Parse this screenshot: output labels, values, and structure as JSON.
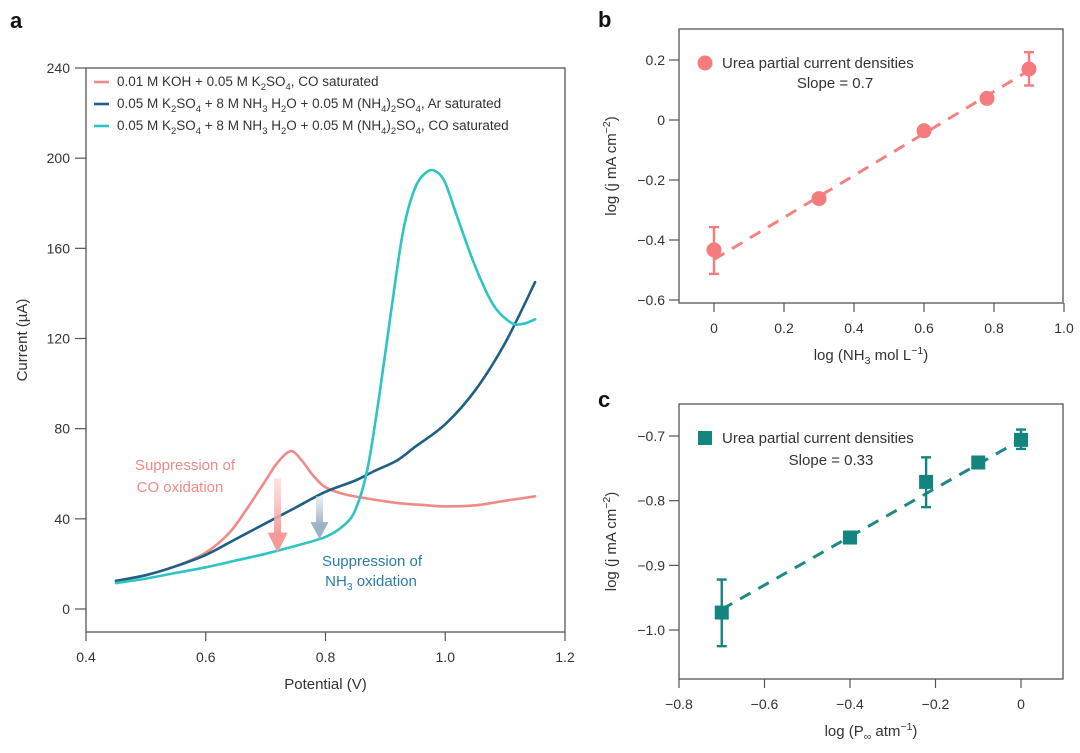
{
  "chart_data": [
    {
      "panel": "a",
      "type": "line",
      "title": "",
      "xlabel": "Potential (V)",
      "ylabel": "Current (µA)",
      "xlim": [
        0.4,
        1.2
      ],
      "ylim": [
        -15,
        240
      ],
      "xticks": [
        0.4,
        0.6,
        0.8,
        1.0,
        1.2
      ],
      "xtick_labels": [
        "0.4",
        "0.6",
        "0.8",
        "1.0",
        "1.2"
      ],
      "yticks": [
        0,
        40,
        80,
        120,
        160,
        200,
        240
      ],
      "ytick_labels": [
        "0",
        "40",
        "80",
        "120",
        "160",
        "200",
        "240"
      ],
      "grid": false,
      "legend_position": "top-left",
      "series": [
        {
          "name": "0.01 M KOH + 0.05 M K₂SO₄, CO saturated",
          "color": "#f08a88",
          "x": [
            0.45,
            0.5,
            0.55,
            0.6,
            0.64,
            0.67,
            0.7,
            0.72,
            0.742,
            0.76,
            0.78,
            0.8,
            0.83,
            0.87,
            0.92,
            0.97,
            1.0,
            1.05,
            1.1,
            1.15
          ],
          "y": [
            12.5,
            15,
            19,
            25,
            34,
            45,
            57,
            65,
            70,
            66,
            59,
            54,
            51,
            49,
            47,
            46,
            45.5,
            46,
            48,
            50
          ]
        },
        {
          "name": "0.05 M K₂SO₄ + 8 M NH₃ H₂O + 0.05 M (NH₄)₂SO₄, Ar saturated",
          "color": "#1f5f86",
          "x": [
            0.45,
            0.5,
            0.55,
            0.6,
            0.65,
            0.7,
            0.75,
            0.8,
            0.85,
            0.88,
            0.92,
            0.95,
            1.0,
            1.05,
            1.1,
            1.15
          ],
          "y": [
            12.5,
            15,
            19,
            24,
            31,
            38,
            45,
            52,
            57,
            61,
            66,
            72,
            82,
            97,
            118,
            145
          ]
        },
        {
          "name": "0.05 M K₂SO₄ + 8 M NH₃ H₂O + 0.05 M (NH₄)₂SO₄, CO saturated",
          "color": "#2ec4c4",
          "x": [
            0.45,
            0.5,
            0.55,
            0.6,
            0.65,
            0.7,
            0.75,
            0.8,
            0.83,
            0.85,
            0.87,
            0.89,
            0.91,
            0.93,
            0.95,
            0.97,
            0.985,
            1.0,
            1.02,
            1.05,
            1.08,
            1.11,
            1.13,
            1.15
          ],
          "y": [
            11.5,
            13.5,
            16,
            18.5,
            21.5,
            24.5,
            28,
            32,
            37,
            44,
            62,
            95,
            133,
            168,
            187,
            194,
            194,
            189,
            174,
            152,
            135,
            127,
            126.5,
            128.5
          ]
        }
      ],
      "annotations": [
        {
          "text_lines": [
            "Suppression of",
            "CO oxidation"
          ],
          "color": "#f08a88",
          "arrow_from": [
            0.72,
            58
          ],
          "arrow_to": [
            0.72,
            25
          ]
        },
        {
          "text_lines": [
            "Suppression of",
            "NH₃ oxidation"
          ],
          "color": "#2a7ea6",
          "arrow_from": [
            0.79,
            50
          ],
          "arrow_to": [
            0.79,
            31
          ]
        }
      ]
    },
    {
      "panel": "b",
      "type": "scatter",
      "title": "",
      "xlabel": "log (NH₃ mol L⁻¹)",
      "ylabel": "log (j mA cm⁻²)",
      "xlim": [
        -0.1,
        1.0
      ],
      "ylim": [
        -0.6,
        0.29
      ],
      "xticks": [
        0,
        0.2,
        0.4,
        0.6,
        0.8,
        1.0
      ],
      "xtick_labels": [
        "0",
        "0.2",
        "0.4",
        "0.6",
        "0.8",
        "1.0"
      ],
      "yticks": [
        -0.6,
        -0.4,
        -0.2,
        0,
        0.2
      ],
      "ytick_labels": [
        "−0.6",
        "−0.4",
        "−0.2",
        "0",
        "0.2"
      ],
      "grid": false,
      "legend_position": "top-left",
      "marker": "circle",
      "color": "#f47c7c",
      "series": [
        {
          "name": "Urea partial current densities",
          "x": [
            0.0,
            0.3,
            0.6,
            0.78,
            0.9
          ],
          "y": [
            -0.433,
            -0.262,
            -0.036,
            0.072,
            0.17
          ],
          "err_low": [
            -0.513,
            null,
            null,
            null,
            0.115
          ],
          "err_high": [
            -0.357,
            null,
            null,
            null,
            0.226
          ]
        }
      ],
      "fit": {
        "label": "Slope = 0.7",
        "slope": 0.7,
        "x": [
          0.0,
          0.9
        ],
        "y": [
          -0.465,
          0.165
        ]
      }
    },
    {
      "panel": "c",
      "type": "scatter",
      "title": "",
      "xlabel": "log (P∞ atm⁻¹)",
      "ylabel": "log (j mA cm⁻²)",
      "xlim": [
        -0.8,
        0.1
      ],
      "ylim": [
        -1.075,
        -0.65
      ],
      "xticks": [
        -0.8,
        -0.6,
        -0.4,
        -0.2,
        0
      ],
      "xtick_labels": [
        "−0.8",
        "−0.6",
        "−0.4",
        "−0.2",
        "0"
      ],
      "yticks": [
        -1.0,
        -0.9,
        -0.8,
        -0.7
      ],
      "ytick_labels": [
        "−1.0",
        "−0.9",
        "−0.8",
        "−0.7"
      ],
      "grid": false,
      "legend_position": "top-left",
      "marker": "square",
      "color": "#14847e",
      "series": [
        {
          "name": "Urea partial current densities",
          "x": [
            -0.7,
            -0.4,
            -0.222,
            -0.1,
            0.0
          ],
          "y": [
            -0.973,
            -0.857,
            -0.771,
            -0.741,
            -0.706
          ],
          "err_low": [
            -1.025,
            null,
            -0.81,
            null,
            -0.72
          ],
          "err_high": [
            -0.922,
            null,
            -0.733,
            null,
            -0.69
          ]
        }
      ],
      "fit": {
        "label": "Slope = 0.33",
        "slope": 0.33,
        "x": [
          -0.7,
          0.0
        ],
        "y": [
          -0.968,
          -0.706
        ]
      }
    }
  ],
  "panel_labels": {
    "a": "a",
    "b": "b",
    "c": "c"
  },
  "panel_a_legend": [
    {
      "parts": [
        [
          "0.01 M KOH + 0.05 M K",
          ""
        ],
        [
          "2",
          "sub"
        ],
        [
          "SO",
          ""
        ],
        [
          "4",
          "sub"
        ],
        [
          ", CO saturated",
          ""
        ]
      ]
    },
    {
      "parts": [
        [
          "0.05 M K",
          ""
        ],
        [
          "2",
          "sub"
        ],
        [
          "SO",
          ""
        ],
        [
          "4",
          "sub"
        ],
        [
          " + 8 M NH",
          ""
        ],
        [
          "3",
          "sub"
        ],
        [
          " H",
          ""
        ],
        [
          "2",
          "sub"
        ],
        [
          "O + 0.05 M (NH",
          ""
        ],
        [
          "4",
          "sub"
        ],
        [
          ")",
          ""
        ],
        [
          "2",
          "sub"
        ],
        [
          "SO",
          ""
        ],
        [
          "4",
          "sub"
        ],
        [
          ", Ar saturated",
          ""
        ]
      ]
    },
    {
      "parts": [
        [
          "0.05 M K",
          ""
        ],
        [
          "2",
          "sub"
        ],
        [
          "SO",
          ""
        ],
        [
          "4",
          "sub"
        ],
        [
          " + 8 M NH",
          ""
        ],
        [
          "3",
          "sub"
        ],
        [
          " H",
          ""
        ],
        [
          "2",
          "sub"
        ],
        [
          "O + 0.05 M (NH",
          ""
        ],
        [
          "4",
          "sub"
        ],
        [
          ")",
          ""
        ],
        [
          "2",
          "sub"
        ],
        [
          "SO",
          ""
        ],
        [
          "4",
          "sub"
        ],
        [
          ", CO saturated",
          ""
        ]
      ]
    }
  ],
  "axis_label_parts": {
    "a_y": "Current (µA)",
    "a_x": "Potential (V)",
    "b_y": [
      [
        "log (j mA cm",
        ""
      ],
      [
        "−2",
        "sup"
      ],
      [
        ")",
        ""
      ]
    ],
    "b_x": [
      [
        "log (NH",
        ""
      ],
      [
        "3",
        "sub"
      ],
      [
        " mol L",
        ""
      ],
      [
        "−1",
        "sup"
      ],
      [
        ")",
        ""
      ]
    ],
    "c_y": [
      [
        "log (j mA cm",
        ""
      ],
      [
        "−2",
        "sup"
      ],
      [
        ")",
        ""
      ]
    ],
    "c_x": [
      [
        "log (P",
        ""
      ],
      [
        "∞",
        "sub"
      ],
      [
        " atm",
        ""
      ],
      [
        "−1",
        "sup"
      ],
      [
        ")",
        ""
      ]
    ]
  },
  "annotation_parts": {
    "co": [
      [
        [
          "Suppression of",
          ""
        ]
      ],
      [
        [
          "CO oxidation",
          ""
        ]
      ]
    ],
    "nh3": [
      [
        [
          "Suppression of",
          ""
        ]
      ],
      [
        [
          "NH",
          ""
        ],
        [
          "3",
          "sub"
        ],
        [
          " oxidation",
          ""
        ]
      ]
    ]
  }
}
